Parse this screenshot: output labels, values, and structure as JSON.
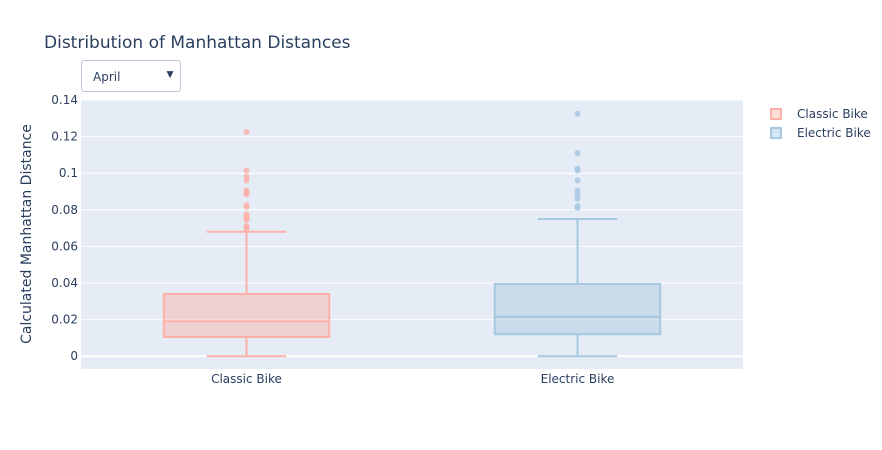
{
  "chart_data": {
    "type": "box",
    "title": "Distribution of Manhattan Distances",
    "ylabel": "Calculated Manhattan Distance",
    "xlabel": "",
    "ylim": [
      -0.007,
      0.14
    ],
    "yticks": [
      0,
      0.02,
      0.04,
      0.06,
      0.08,
      0.1,
      0.12,
      0.14
    ],
    "yticklabels": [
      "0",
      "0.02",
      "0.04",
      "0.06",
      "0.08",
      "0.1",
      "0.12",
      "0.14"
    ],
    "grid": true,
    "legend_position": "top-right",
    "categories": [
      "Classic Bike",
      "Electric Bike"
    ],
    "series": [
      {
        "name": "Classic Bike",
        "color": "#fcb1a9",
        "fill": "rgba(252,177,169,0.45)",
        "whisker_low": 0.0,
        "q1": 0.0105,
        "median": 0.019,
        "q3": 0.034,
        "whisker_high": 0.068,
        "outliers": [
          0.0695,
          0.0705,
          0.071,
          0.0745,
          0.0755,
          0.0765,
          0.0775,
          0.0815,
          0.0825,
          0.0885,
          0.0895,
          0.0905,
          0.096,
          0.098,
          0.1015,
          0.1225
        ]
      },
      {
        "name": "Electric Bike",
        "color": "#a8c8e0",
        "fill": "rgba(168,200,224,0.45)",
        "whisker_low": 0.0,
        "q1": 0.012,
        "median": 0.0215,
        "q3": 0.0395,
        "whisker_high": 0.075,
        "outliers": [
          0.081,
          0.082,
          0.086,
          0.0885,
          0.0905,
          0.096,
          0.1015,
          0.1025,
          0.111,
          0.1325
        ]
      }
    ]
  },
  "dropdown": {
    "selected": "April",
    "arrow_icon": "triangle-down-icon"
  },
  "legend": [
    {
      "label": "Classic Bike",
      "color": "#fcb1a9"
    },
    {
      "label": "Electric Bike",
      "color": "#a8c8e0"
    }
  ],
  "colors": {
    "plot_bg": "#e5ecf6",
    "grid": "#ffffff",
    "text": "#2a3f5f"
  }
}
